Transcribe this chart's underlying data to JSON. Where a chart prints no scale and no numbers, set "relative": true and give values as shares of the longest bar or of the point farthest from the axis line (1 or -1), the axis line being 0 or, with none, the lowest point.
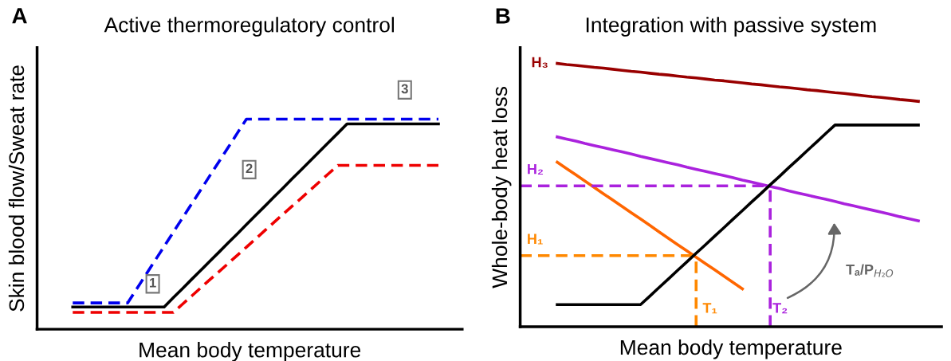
{
  "chart_data": [
    {
      "type": "line",
      "title": "Active thermoregulatory control",
      "xlabel": "Mean body temperature",
      "ylabel": "Skin blood flow/Sweat rate",
      "relative": true,
      "categories": [
        null,
        null,
        null,
        null,
        null,
        null,
        null,
        null,
        null,
        null,
        null,
        null,
        null,
        null,
        null,
        null,
        null,
        null,
        null,
        null,
        null,
        null,
        null,
        null,
        null,
        null,
        null,
        null,
        null,
        null,
        null,
        null,
        null,
        null,
        null,
        null,
        null,
        null,
        null,
        null,
        null
      ],
      "series": [
        {
          "color": "#0000ee",
          "line_style": "dashed",
          "values": [
            0.125,
            0.125,
            0.125,
            0.125,
            0.125,
            0.125,
            0.125,
            0.192,
            0.26,
            0.327,
            0.394,
            0.462,
            0.529,
            0.596,
            0.663,
            0.731,
            0.798,
            0.865,
            0.933,
            1.0,
            1.0,
            1.0,
            1.0,
            1.0,
            1.0,
            1.0,
            1.0,
            1.0,
            1.0,
            1.0,
            1.0,
            1.0,
            1.0,
            1.0,
            1.0,
            1.0,
            1.0,
            1.0,
            1.0,
            1.0,
            1.0
          ]
        },
        {
          "color": "#ee0000",
          "line_style": "dashed",
          "values": [
            0.08,
            0.08,
            0.08,
            0.08,
            0.08,
            0.08,
            0.08,
            0.08,
            0.08,
            0.08,
            0.08,
            0.08,
            0.119,
            0.158,
            0.197,
            0.236,
            0.274,
            0.313,
            0.352,
            0.391,
            0.43,
            0.469,
            0.508,
            0.547,
            0.586,
            0.624,
            0.663,
            0.702,
            0.741,
            0.78,
            0.78,
            0.78,
            0.78,
            0.78,
            0.78,
            0.78,
            0.78,
            0.78,
            0.78,
            0.78,
            0.78
          ]
        },
        {
          "color": "#000000",
          "line_style": "solid",
          "values": [
            0.106,
            0.106,
            0.106,
            0.106,
            0.106,
            0.106,
            0.106,
            0.106,
            0.106,
            0.106,
            0.106,
            0.15,
            0.193,
            0.237,
            0.28,
            0.324,
            0.367,
            0.411,
            0.454,
            0.498,
            0.542,
            0.585,
            0.629,
            0.672,
            0.716,
            0.759,
            0.803,
            0.846,
            0.89,
            0.933,
            0.977,
            0.977,
            0.977,
            0.977,
            0.977,
            0.977,
            0.977,
            0.977,
            0.977,
            0.977,
            0.977
          ]
        }
      ],
      "annotations": [
        "A",
        "1",
        "2",
        "3"
      ]
    },
    {
      "type": "line",
      "title": "Integration with passive system",
      "xlabel": "Mean body temperature",
      "ylabel": "Whole-body heat loss",
      "relative": true,
      "categories": [
        null,
        null,
        null,
        null,
        null,
        null,
        null,
        null,
        null,
        null,
        null,
        null,
        null,
        null,
        null,
        null,
        null,
        null,
        null,
        null,
        null,
        null,
        null,
        null,
        null,
        null,
        null,
        null,
        null,
        null,
        null,
        null,
        null,
        null,
        null,
        null,
        null,
        null,
        null,
        null,
        null,
        null,
        null,
        null
      ],
      "series": [
        {
          "name": "H₃",
          "color": "#990000",
          "line_style": "solid",
          "values": [
            null,
            null,
            null,
            null,
            1.0,
            0.996,
            0.993,
            0.989,
            0.985,
            0.982,
            0.978,
            0.974,
            0.97,
            0.967,
            0.963,
            0.959,
            0.956,
            0.952,
            0.948,
            0.945,
            0.941,
            0.937,
            0.934,
            0.93,
            0.926,
            0.922,
            0.919,
            0.915,
            0.911,
            0.908,
            0.904,
            0.9,
            0.897,
            0.893,
            0.889,
            0.886,
            0.882,
            0.878,
            0.874,
            0.871,
            0.867,
            0.863,
            0.86,
            0.856
          ]
        },
        {
          "color": "#aa22dd",
          "line_style": "solid",
          "values": [
            null,
            null,
            null,
            null,
            0.721,
            0.713,
            0.705,
            0.696,
            0.688,
            0.68,
            0.672,
            0.664,
            0.656,
            0.647,
            0.639,
            0.631,
            0.623,
            0.615,
            0.606,
            0.598,
            0.59,
            0.582,
            0.574,
            0.566,
            0.557,
            0.549,
            0.541,
            0.533,
            0.525,
            0.516,
            0.508,
            0.5,
            0.492,
            0.484,
            0.476,
            0.467,
            0.459,
            0.451,
            0.443,
            0.435,
            0.427,
            0.418,
            0.41,
            0.402
          ]
        },
        {
          "color": "#ff6600",
          "line_style": "solid",
          "values": [
            null,
            null,
            null,
            null,
            0.625,
            0.601,
            0.577,
            0.553,
            0.529,
            0.505,
            0.481,
            0.457,
            0.433,
            0.409,
            0.385,
            0.36,
            0.336,
            0.312,
            0.288,
            0.264,
            0.24,
            0.216,
            0.192,
            0.168,
            0.144,
            null,
            null,
            null,
            null,
            null,
            null,
            null,
            null,
            null,
            null,
            null,
            null,
            null,
            null,
            null,
            null,
            null,
            null,
            null
          ]
        },
        {
          "name": "H₂",
          "color": "#aa22dd",
          "line_style": "dashed",
          "values": [
            0.535,
            0.535,
            0.535,
            0.535,
            0.535,
            0.535,
            0.535,
            0.535,
            0.535,
            0.535,
            0.535,
            0.535,
            0.535,
            0.535,
            0.535,
            0.535,
            0.535,
            0.535,
            0.535,
            0.535,
            0.535,
            0.535,
            0.535,
            0.535,
            0.535,
            0.535,
            0.535,
            0.535,
            null,
            null,
            null,
            null,
            null,
            null,
            null,
            null,
            null,
            null,
            null,
            null,
            null,
            null,
            null,
            null
          ]
        },
        {
          "name": "H₁",
          "color": "#ff8800",
          "line_style": "dashed",
          "values": [
            0.27,
            0.27,
            0.27,
            0.27,
            0.27,
            0.27,
            0.27,
            0.27,
            0.27,
            0.27,
            0.27,
            0.27,
            0.27,
            0.27,
            0.27,
            0.27,
            0.27,
            0.27,
            0.27,
            0.27,
            null,
            null,
            null,
            null,
            null,
            null,
            null,
            null,
            null,
            null,
            null,
            null,
            null,
            null,
            null,
            null,
            null,
            null,
            null,
            null,
            null,
            null,
            null,
            null
          ]
        },
        {
          "color": "#000000",
          "line_style": "solid",
          "values": [
            null,
            null,
            null,
            null,
            0.084,
            0.084,
            0.084,
            0.084,
            0.084,
            0.084,
            0.084,
            0.084,
            0.084,
            0.084,
            0.116,
            0.149,
            0.181,
            0.214,
            0.246,
            0.279,
            0.311,
            0.344,
            0.376,
            0.409,
            0.441,
            0.474,
            0.506,
            0.539,
            0.571,
            0.604,
            0.636,
            0.669,
            0.701,
            0.734,
            0.766,
            0.766,
            0.766,
            0.766,
            0.766,
            0.766,
            0.766,
            0.766,
            0.766,
            0.766
          ]
        }
      ],
      "annotations": [
        "B",
        "T₁",
        "T₂",
        "Tₐ/P$_{H₂O}$"
      ]
    }
  ]
}
